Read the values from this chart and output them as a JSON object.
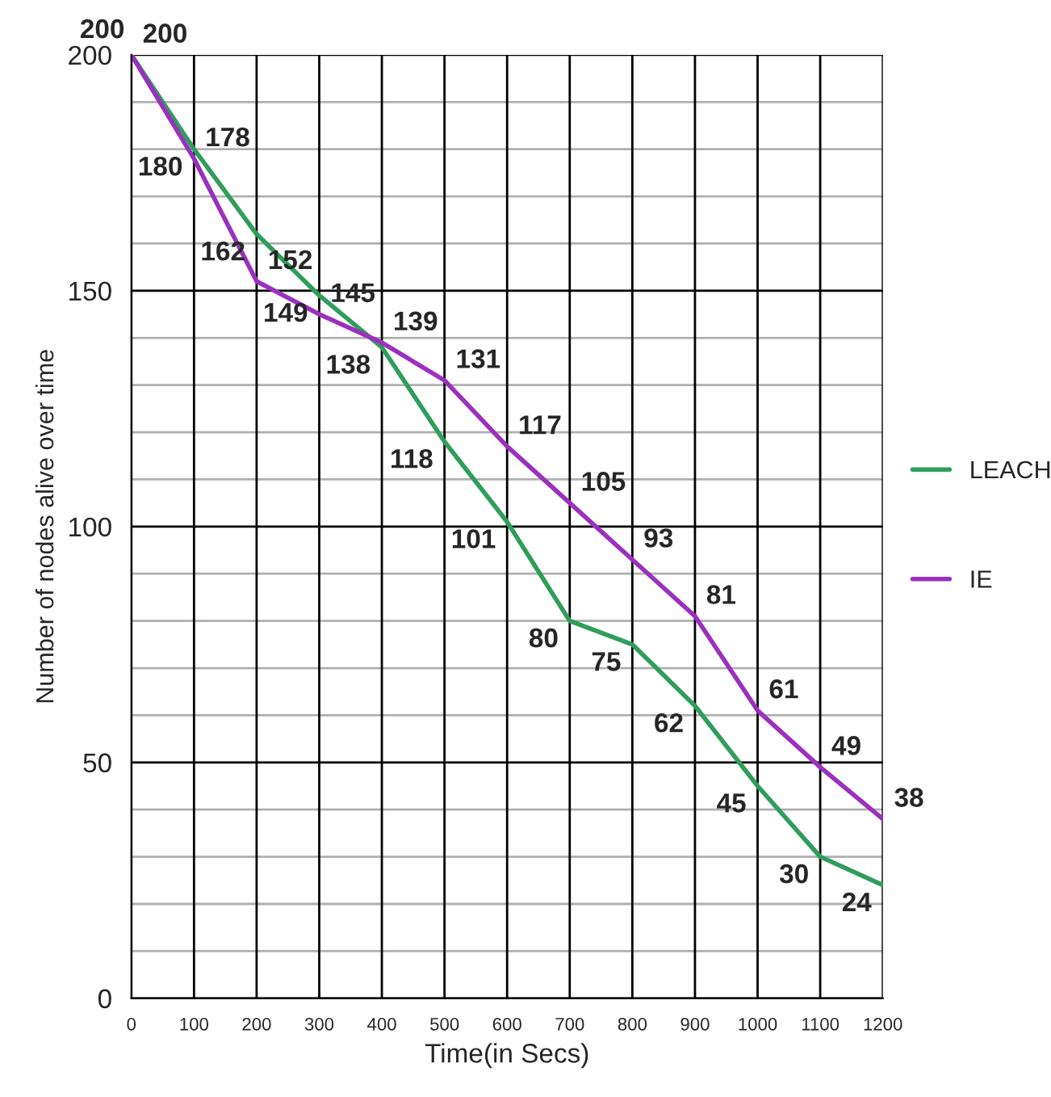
{
  "chart_data": {
    "type": "line",
    "xlabel": "Time(in Secs)",
    "ylabel": "Number of nodes alive over time",
    "x": [
      0,
      100,
      200,
      300,
      400,
      500,
      600,
      700,
      800,
      900,
      1000,
      1100,
      1200
    ],
    "series": [
      {
        "name": "LEACH",
        "color": "#2e9e5a",
        "values": [
          200,
          180,
          162,
          149,
          138,
          118,
          101,
          80,
          75,
          62,
          45,
          30,
          24
        ]
      },
      {
        "name": "IE",
        "color": "#9b30c0",
        "values": [
          200,
          178,
          152,
          145,
          139,
          131,
          117,
          105,
          93,
          81,
          61,
          49,
          38
        ]
      }
    ],
    "xlim": [
      0,
      1200
    ],
    "xticks": [
      0,
      100,
      200,
      300,
      400,
      500,
      600,
      700,
      800,
      900,
      1000,
      1100,
      1200
    ],
    "ylim": [
      0,
      200
    ],
    "yticks": [
      0,
      {
        "value": 10,
        "label": null
      },
      {
        "value": 20,
        "label": null
      },
      {
        "value": 30,
        "label": null
      },
      {
        "value": 40,
        "label": null
      },
      50,
      {
        "value": 60,
        "label": null
      },
      {
        "value": 70,
        "label": null
      },
      {
        "value": 80,
        "label": null
      },
      {
        "value": 90,
        "label": null
      },
      100,
      {
        "value": 110,
        "label": null
      },
      {
        "value": 120,
        "label": null
      },
      {
        "value": 130,
        "label": null
      },
      {
        "value": 140,
        "label": null
      },
      150,
      {
        "value": 160,
        "label": null
      },
      {
        "value": 170,
        "label": null
      },
      {
        "value": 180,
        "label": null
      },
      {
        "value": 190,
        "label": null
      },
      200
    ],
    "grid": true,
    "legend": "right",
    "data_labels": true,
    "marker": "none",
    "line_style": "solid"
  }
}
